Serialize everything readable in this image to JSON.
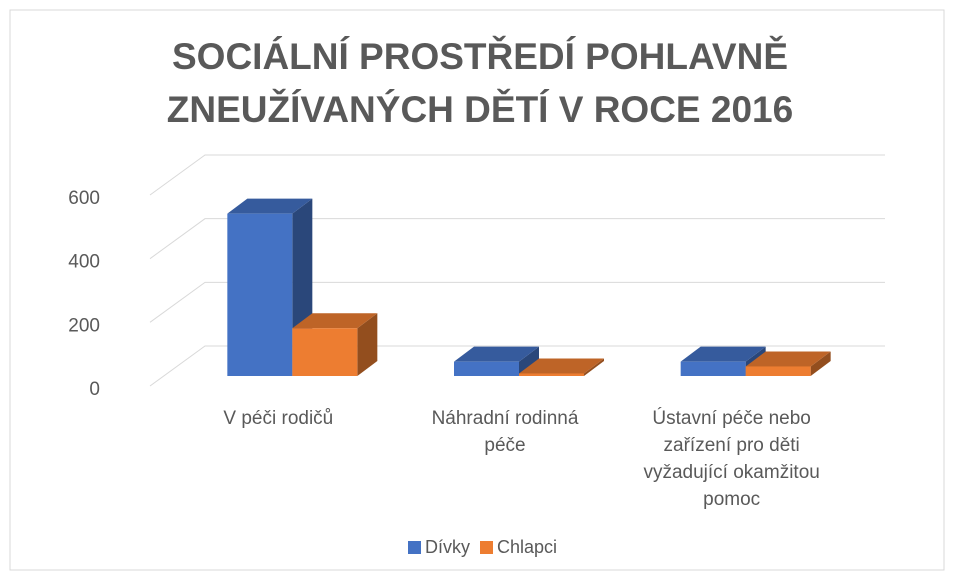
{
  "chart_data": {
    "type": "bar3d",
    "title": "SOCIÁLNÍ PROSTŘEDÍ POHLAVNĚ ZNEUŽÍVANÝCH DĚTÍ V ROCE 2016",
    "categories": [
      "V péči rodičů",
      "Náhradní rodinná péče",
      "Ústavní péče nebo zařízení pro děti vyžadující okamžitou pomoc"
    ],
    "series": [
      {
        "name": "Dívky",
        "color": "#4472c4",
        "values": [
          510,
          45,
          45
        ]
      },
      {
        "name": "Chlapci",
        "color": "#ed7d31",
        "values": [
          150,
          8,
          30
        ]
      }
    ],
    "ylim": [
      0,
      600
    ],
    "yticks": [
      0,
      200,
      400,
      600
    ],
    "grid": true,
    "legend": "bottom"
  }
}
